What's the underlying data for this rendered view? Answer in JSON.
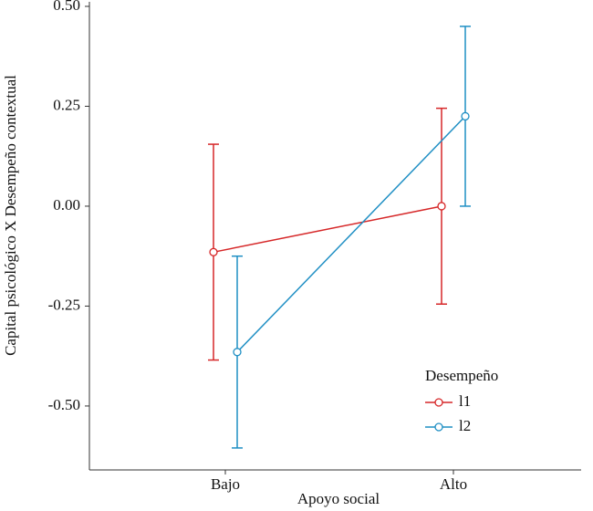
{
  "chart_data": {
    "type": "line",
    "x_label": "Apoyo social",
    "y_label": "Capital psicológico X Desempeño contextual",
    "categories": [
      "Bajo",
      "Alto"
    ],
    "series": [
      {
        "name": "l1",
        "color": "#d62728",
        "values": [
          -0.115,
          0.0
        ],
        "errors": [
          0.27,
          0.245
        ]
      },
      {
        "name": "l2",
        "color": "#1f8fc4",
        "values": [
          -0.365,
          0.225
        ],
        "errors": [
          0.24,
          0.225
        ]
      }
    ],
    "ylim": [
      -0.66,
      0.51
    ],
    "yticks": [
      {
        "value": 0.5,
        "label": "0.50"
      },
      {
        "value": 0.25,
        "label": "0.25"
      },
      {
        "value": 0,
        "label": "0.00"
      },
      {
        "value": -0.25,
        "label": "-0.25"
      },
      {
        "value": -0.5,
        "label": "-0.50"
      }
    ],
    "legend_title": "Desempeño",
    "legend_position": "bottom-right"
  }
}
